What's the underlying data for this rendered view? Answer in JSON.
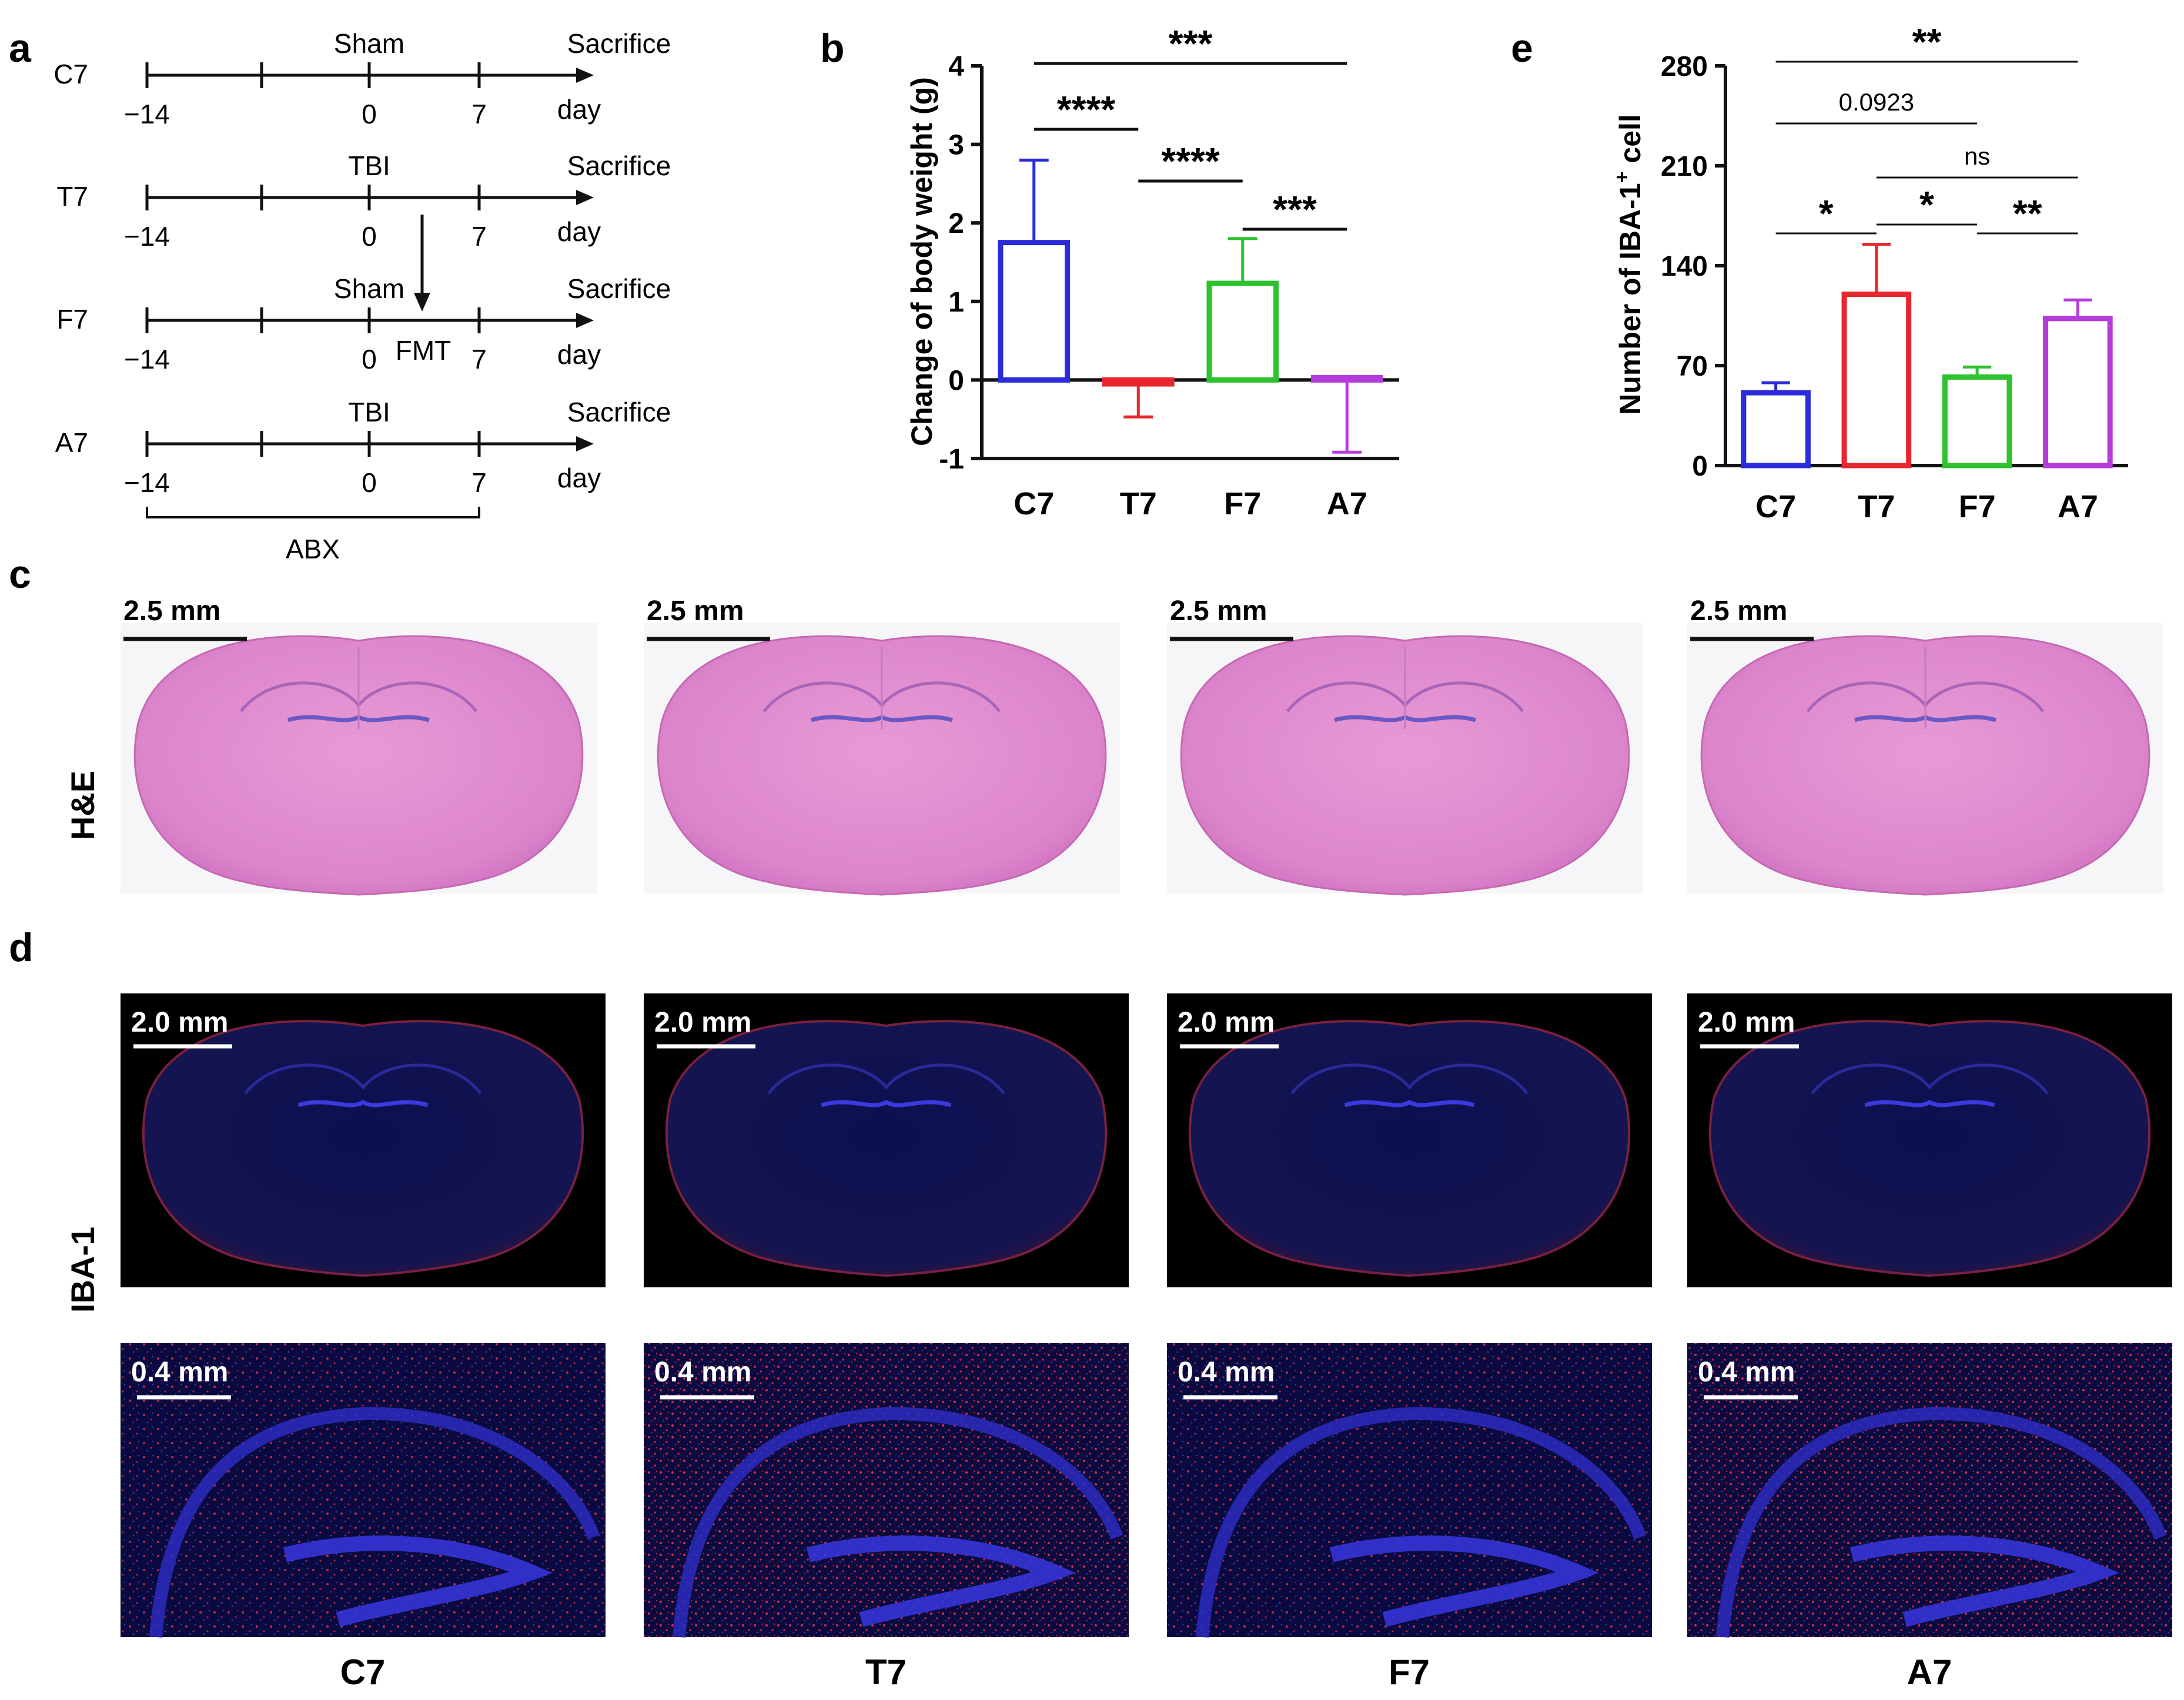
{
  "panel_letters": {
    "a": "a",
    "b": "b",
    "c": "c",
    "d": "d",
    "e": "e"
  },
  "timeline": {
    "rows": [
      {
        "group": "C7",
        "event": "Sham",
        "end": "Sacrifice",
        "unit": "day",
        "ticks": [
          "−14",
          "0",
          "7"
        ]
      },
      {
        "group": "T7",
        "event": "TBI",
        "end": "Sacrifice",
        "unit": "day",
        "ticks": [
          "−14",
          "0",
          "7"
        ]
      },
      {
        "group": "F7",
        "event": "Sham",
        "end": "Sacrifice",
        "unit": "day",
        "ticks": [
          "−14",
          "0",
          "7"
        ],
        "extra": "FMT"
      },
      {
        "group": "A7",
        "event": "TBI",
        "end": "Sacrifice",
        "unit": "day",
        "ticks": [
          "−14",
          "0",
          "7"
        ]
      }
    ],
    "bracket_label": "ABX"
  },
  "chart_data": [
    {
      "panel": "b",
      "type": "bar",
      "categories": [
        "C7",
        "T7",
        "F7",
        "A7"
      ],
      "values": [
        1.75,
        -0.05,
        1.23,
        0.03
      ],
      "errors_upper": [
        2.8,
        -0.05,
        1.8,
        0.03
      ],
      "errors_lower": [
        1.75,
        -0.47,
        1.23,
        -0.92
      ],
      "colors": [
        "#2b2bdc",
        "#e8262d",
        "#2ec22e",
        "#b43bdc"
      ],
      "ylabel": "Change of body weight (g)",
      "yticks": [
        "-1",
        "0",
        "1",
        "2",
        "3",
        "4"
      ],
      "ylim": [
        -1,
        4
      ],
      "significance": [
        {
          "from": "C7",
          "to": "A7",
          "label": "***"
        },
        {
          "from": "C7",
          "to": "T7",
          "label": "****"
        },
        {
          "from": "T7",
          "to": "F7",
          "label": "****"
        },
        {
          "from": "F7",
          "to": "A7",
          "label": "***"
        }
      ]
    },
    {
      "panel": "e",
      "type": "bar",
      "categories": [
        "C7",
        "T7",
        "F7",
        "A7"
      ],
      "values": [
        51,
        120,
        62,
        103
      ],
      "errors_upper": [
        58,
        155,
        69,
        116
      ],
      "colors": [
        "#2b2bdc",
        "#e8262d",
        "#2ec22e",
        "#b43bdc"
      ],
      "ylabel_main": "Number of IBA-1",
      "ylabel_sup": "+",
      "ylabel_tail": " cell",
      "yticks": [
        "0",
        "70",
        "140",
        "210",
        "280"
      ],
      "ylim": [
        0,
        280
      ],
      "significance": [
        {
          "from": "C7",
          "to": "A7",
          "label": "**"
        },
        {
          "from": "C7",
          "to": "F7",
          "label": "0.0923"
        },
        {
          "from": "T7",
          "to": "A7",
          "label": "ns"
        },
        {
          "from": "C7",
          "to": "T7",
          "label": "*"
        },
        {
          "from": "T7",
          "to": "F7",
          "label": "*"
        },
        {
          "from": "F7",
          "to": "A7",
          "label": "**"
        }
      ]
    }
  ],
  "he_row": {
    "stain": "H&E",
    "scalebar": "2.5 mm"
  },
  "iba_row": {
    "stain": "IBA-1",
    "scalebar_top": "2.0 mm",
    "scalebar_bottom": "0.4 mm"
  },
  "groups": [
    "C7",
    "T7",
    "F7",
    "A7"
  ]
}
